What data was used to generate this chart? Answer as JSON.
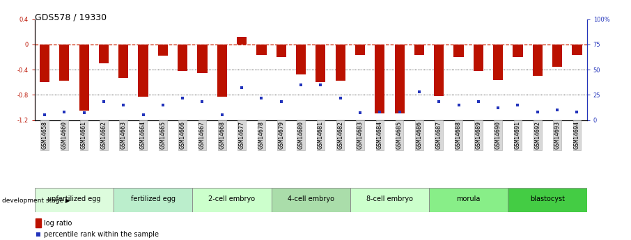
{
  "title": "GDS578 / 19330",
  "samples": [
    "GSM14658",
    "GSM14660",
    "GSM14661",
    "GSM14662",
    "GSM14663",
    "GSM14664",
    "GSM14665",
    "GSM14666",
    "GSM14667",
    "GSM14668",
    "GSM14677",
    "GSM14678",
    "GSM14679",
    "GSM14680",
    "GSM14681",
    "GSM14682",
    "GSM14683",
    "GSM14684",
    "GSM14685",
    "GSM14686",
    "GSM14687",
    "GSM14688",
    "GSM14689",
    "GSM14690",
    "GSM14691",
    "GSM14692",
    "GSM14693",
    "GSM14694"
  ],
  "log_ratio": [
    -0.6,
    -0.58,
    -1.05,
    -0.3,
    -0.53,
    -0.83,
    -0.18,
    -0.42,
    -0.45,
    -0.83,
    0.12,
    -0.17,
    -0.2,
    -0.48,
    -0.6,
    -0.58,
    -0.17,
    -1.1,
    -1.1,
    -0.17,
    -0.82,
    -0.2,
    -0.42,
    -0.57,
    -0.2,
    -0.5,
    -0.35,
    -0.17
  ],
  "percentile_rank": [
    5,
    8,
    7,
    18,
    15,
    5,
    15,
    22,
    18,
    5,
    32,
    22,
    18,
    35,
    35,
    22,
    7,
    8,
    8,
    28,
    18,
    15,
    18,
    12,
    15,
    8,
    10,
    8
  ],
  "stages": [
    {
      "label": "unfertilized egg",
      "start": 0,
      "end": 4,
      "color": "#ddfcdd"
    },
    {
      "label": "fertilized egg",
      "start": 4,
      "end": 8,
      "color": "#bbeecc"
    },
    {
      "label": "2-cell embryo",
      "start": 8,
      "end": 12,
      "color": "#ccffcc"
    },
    {
      "label": "4-cell embryo",
      "start": 12,
      "end": 16,
      "color": "#aaddaa"
    },
    {
      "label": "8-cell embryo",
      "start": 16,
      "end": 20,
      "color": "#ccffcc"
    },
    {
      "label": "morula",
      "start": 20,
      "end": 24,
      "color": "#88ee88"
    },
    {
      "label": "blastocyst",
      "start": 24,
      "end": 28,
      "color": "#44cc44"
    }
  ],
  "ylim_left": [
    -1.2,
    0.4
  ],
  "ylim_right": [
    0,
    100
  ],
  "bar_color": "#bb1100",
  "dot_color": "#2233bb",
  "hline_color": "#cc2200",
  "title_fontsize": 9,
  "tick_fontsize": 6,
  "legend_fontsize": 7,
  "stage_fontsize": 7
}
